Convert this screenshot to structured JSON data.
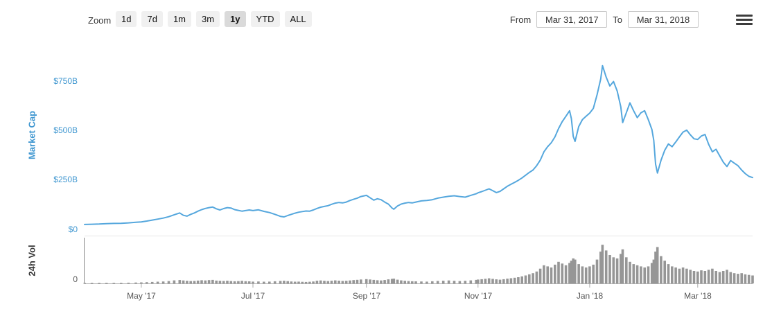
{
  "toolbar": {
    "zoom_label": "Zoom",
    "buttons": [
      {
        "label": "1d",
        "selected": false
      },
      {
        "label": "7d",
        "selected": false
      },
      {
        "label": "1m",
        "selected": false
      },
      {
        "label": "3m",
        "selected": false
      },
      {
        "label": "1y",
        "selected": true
      },
      {
        "label": "YTD",
        "selected": false
      },
      {
        "label": "ALL",
        "selected": false
      }
    ],
    "from_label": "From",
    "from_value": "Mar 31, 2017",
    "to_label": "To",
    "to_value": "Mar 31, 2018",
    "menu_icon": "hamburger-menu-icon"
  },
  "chart_data": {
    "type": "line",
    "title": "",
    "x_unit": "days since Mar 31, 2017",
    "x_range": [
      0,
      365
    ],
    "x_ticks": [
      {
        "day": 31,
        "label": "May '17"
      },
      {
        "day": 92,
        "label": "Jul '17"
      },
      {
        "day": 154,
        "label": "Sep '17"
      },
      {
        "day": 215,
        "label": "Nov '17"
      },
      {
        "day": 276,
        "label": "Jan '18"
      },
      {
        "day": 335,
        "label": "Mar '18"
      }
    ],
    "main_pane": {
      "series_name": "Market Cap",
      "ylabel": "Market Cap",
      "unit": "USD billions",
      "color": "#55a7dd",
      "ylim": [
        0,
        860
      ],
      "grid": false,
      "yticks": [
        {
          "value": 0,
          "label": "$0"
        },
        {
          "value": 250,
          "label": "$250B"
        },
        {
          "value": 500,
          "label": "$500B"
        },
        {
          "value": 750,
          "label": "$750B"
        }
      ]
    },
    "volume_pane": {
      "series_name": "24h Vol",
      "ylabel": "24h Vol",
      "unit": "USD billions",
      "color": "#969696",
      "ylim": [
        0,
        75
      ],
      "yticks": [
        {
          "value": 0,
          "label": "0"
        }
      ]
    },
    "days": [
      0,
      4,
      8,
      12,
      16,
      20,
      24,
      28,
      31,
      34,
      37,
      40,
      43,
      46,
      49,
      52,
      54,
      56,
      58,
      60,
      62,
      64,
      66,
      68,
      70,
      72,
      74,
      76,
      78,
      80,
      82,
      84,
      86,
      88,
      90,
      92,
      95,
      98,
      101,
      104,
      107,
      109,
      111,
      113,
      115,
      117,
      119,
      121,
      123,
      125,
      127,
      129,
      131,
      133,
      135,
      137,
      139,
      141,
      143,
      145,
      147,
      149,
      151,
      154,
      156,
      158,
      160,
      162,
      164,
      166,
      168,
      169,
      171,
      173,
      175,
      177,
      179,
      181,
      184,
      187,
      190,
      193,
      196,
      199,
      202,
      205,
      208,
      211,
      214,
      215,
      217,
      219,
      221,
      223,
      225,
      227,
      229,
      231,
      233,
      235,
      237,
      239,
      241,
      243,
      245,
      247,
      249,
      251,
      253,
      255,
      257,
      259,
      261,
      263,
      265,
      266,
      267,
      268,
      270,
      272,
      274,
      276,
      278,
      280,
      282,
      283,
      285,
      287,
      289,
      291,
      293,
      294,
      296,
      298,
      300,
      302,
      304,
      306,
      308,
      310,
      311,
      312,
      313,
      315,
      317,
      319,
      321,
      323,
      325,
      327,
      329,
      331,
      333,
      335,
      337,
      339,
      341,
      343,
      345,
      347,
      349,
      351,
      353,
      355,
      357,
      359,
      361,
      363,
      365
    ],
    "market_cap_billions": [
      25,
      26,
      27,
      29,
      30,
      31,
      33,
      36,
      38,
      42,
      47,
      52,
      57,
      64,
      74,
      83,
      71,
      67,
      76,
      83,
      92,
      100,
      106,
      110,
      113,
      104,
      98,
      105,
      110,
      108,
      100,
      96,
      92,
      95,
      98,
      95,
      99,
      91,
      85,
      76,
      66,
      63,
      70,
      76,
      82,
      87,
      90,
      93,
      92,
      98,
      106,
      112,
      116,
      120,
      127,
      133,
      136,
      134,
      138,
      146,
      152,
      158,
      166,
      172,
      160,
      148,
      155,
      150,
      138,
      128,
      108,
      102,
      118,
      128,
      133,
      136,
      134,
      138,
      144,
      146,
      150,
      158,
      163,
      167,
      170,
      166,
      163,
      172,
      180,
      185,
      191,
      198,
      205,
      196,
      186,
      192,
      205,
      218,
      228,
      238,
      248,
      260,
      274,
      288,
      300,
      322,
      350,
      392,
      418,
      438,
      468,
      510,
      545,
      572,
      600,
      560,
      470,
      445,
      520,
      555,
      572,
      588,
      612,
      680,
      760,
      828,
      770,
      725,
      748,
      700,
      620,
      540,
      590,
      640,
      600,
      565,
      590,
      600,
      555,
      505,
      450,
      330,
      285,
      350,
      400,
      432,
      418,
      442,
      468,
      492,
      502,
      478,
      458,
      455,
      472,
      480,
      430,
      392,
      405,
      372,
      340,
      318,
      348,
      335,
      322,
      300,
      282,
      268,
      262
    ],
    "volume_billions": [
      0.9,
      1.0,
      0.9,
      1.1,
      1.0,
      1.2,
      1.4,
      1.6,
      1.8,
      2.2,
      2.6,
      3.0,
      3.4,
      4.2,
      5.4,
      6.0,
      5.2,
      4.6,
      4.2,
      4.4,
      5.0,
      5.6,
      5.2,
      5.8,
      6.2,
      5.0,
      4.6,
      4.4,
      4.8,
      4.2,
      3.8,
      4.0,
      4.6,
      3.9,
      3.6,
      3.2,
      3.4,
      3.0,
      3.2,
      3.8,
      4.4,
      4.8,
      4.0,
      3.4,
      3.0,
      3.2,
      2.8,
      2.6,
      2.9,
      3.4,
      4.8,
      5.2,
      4.6,
      4.2,
      4.8,
      5.4,
      4.9,
      4.4,
      4.6,
      5.2,
      5.8,
      6.4,
      7.0,
      7.6,
      7.0,
      6.2,
      5.6,
      5.2,
      6.0,
      7.2,
      8.0,
      8.4,
      6.6,
      5.4,
      4.6,
      4.2,
      3.8,
      3.6,
      3.4,
      3.2,
      3.8,
      4.4,
      4.8,
      5.2,
      4.6,
      4.2,
      4.6,
      5.4,
      6.2,
      6.8,
      7.4,
      8.2,
      9.0,
      8.0,
      7.2,
      6.6,
      7.4,
      8.4,
      9.2,
      10.0,
      11.0,
      12.5,
      14.0,
      16.0,
      18.0,
      21.0,
      26.0,
      32.0,
      30.0,
      28.0,
      33.0,
      38.0,
      35.0,
      32.0,
      36.0,
      40.0,
      44.0,
      42.0,
      34.0,
      30.0,
      28.0,
      30.0,
      33.0,
      42.0,
      56.0,
      68.0,
      58.0,
      50.0,
      46.0,
      44.0,
      52.0,
      60.0,
      46.0,
      38.0,
      34.0,
      32.0,
      30.0,
      28.0,
      30.0,
      36.0,
      42.0,
      56.0,
      64.0,
      48.0,
      40.0,
      34.0,
      30.0,
      28.0,
      26.0,
      28.0,
      26.0,
      24.0,
      22.0,
      21.0,
      23.0,
      22.0,
      24.0,
      26.0,
      22.0,
      20.0,
      22.0,
      24.0,
      20.0,
      18.0,
      17.0,
      18.0,
      16.0,
      15.0,
      14.0
    ]
  }
}
